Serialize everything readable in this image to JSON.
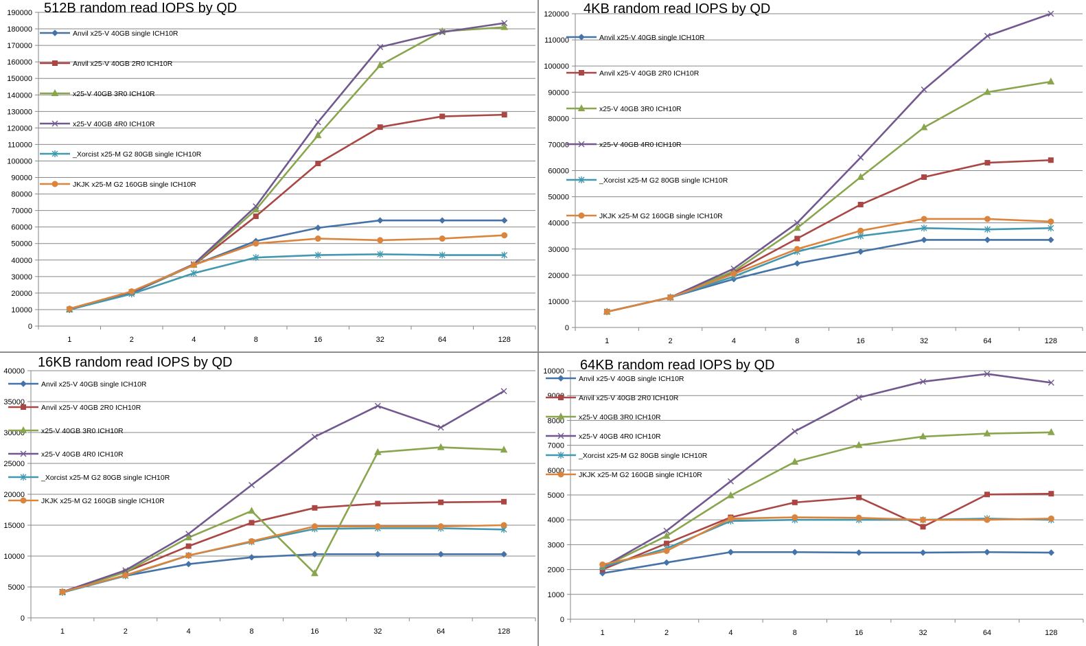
{
  "chart_data": [
    {
      "type": "line",
      "title": "512B random read IOPS by QD",
      "categories": [
        "1",
        "2",
        "4",
        "8",
        "16",
        "32",
        "64",
        "128"
      ],
      "ylim": [
        0,
        190000
      ],
      "ystep": 10000,
      "yticks": [
        "0",
        "10000",
        "20000",
        "30000",
        "40000",
        "50000",
        "60000",
        "70000",
        "80000",
        "90000",
        "100000",
        "110000",
        "120000",
        "130000",
        "140000",
        "150000",
        "160000",
        "170000",
        "180000",
        "190000"
      ],
      "grid": true,
      "legend_position": "top-left",
      "series": [
        {
          "name": "Anvil x25-V 40GB single ICH10R",
          "color": "#4572a7",
          "marker": "diamond",
          "values": [
            10000,
            20000,
            37000,
            51500,
            59500,
            64000,
            64000,
            64000
          ]
        },
        {
          "name": "Anvil x25-V 40GB 2R0 ICH10R",
          "color": "#aa4643",
          "marker": "square",
          "values": [
            10000,
            20500,
            37000,
            66500,
            98500,
            120500,
            127000,
            128000
          ]
        },
        {
          "name": "x25-V 40GB 3R0 ICH10R",
          "color": "#89a54e",
          "marker": "triangle",
          "values": [
            10000,
            20500,
            37000,
            70500,
            115500,
            158000,
            178500,
            181000
          ]
        },
        {
          "name": "x25-V 40GB 4R0 ICH10R",
          "color": "#71588f",
          "marker": "x",
          "values": [
            10000,
            20500,
            37500,
            72500,
            123500,
            169000,
            178000,
            183500
          ]
        },
        {
          "name": "_Xorcist x25-M G2 80GB single ICH10R",
          "color": "#4198af",
          "marker": "star",
          "values": [
            10000,
            19500,
            32000,
            41500,
            43000,
            43500,
            43000,
            43000
          ]
        },
        {
          "name": "JKJK x25-M G2 160GB single  ICH10R",
          "color": "#db843d",
          "marker": "circle",
          "values": [
            10500,
            21000,
            37000,
            50000,
            53000,
            52000,
            53000,
            55000
          ]
        }
      ]
    },
    {
      "type": "line",
      "title": "4KB random read IOPS by QD",
      "categories": [
        "1",
        "2",
        "4",
        "8",
        "16",
        "32",
        "64",
        "128"
      ],
      "ylim": [
        0,
        120000
      ],
      "ystep": 10000,
      "yticks": [
        "0",
        "10000",
        "20000",
        "30000",
        "40000",
        "50000",
        "60000",
        "70000",
        "80000",
        "90000",
        "100000",
        "110000",
        "120000"
      ],
      "grid": true,
      "legend_position": "top-left",
      "series": [
        {
          "name": "Anvil x25-V 40GB single ICH10R",
          "color": "#4572a7",
          "marker": "diamond",
          "values": [
            6000,
            11500,
            18500,
            24500,
            29000,
            33500,
            33500,
            33500
          ]
        },
        {
          "name": "Anvil x25-V 40GB 2R0 ICH10R",
          "color": "#aa4643",
          "marker": "square",
          "values": [
            6000,
            11500,
            21000,
            34000,
            47000,
            57500,
            63000,
            64000
          ]
        },
        {
          "name": "x25-V 40GB 3R0 ICH10R",
          "color": "#89a54e",
          "marker": "triangle",
          "values": [
            6000,
            11500,
            21500,
            38000,
            57500,
            76500,
            90000,
            94000
          ]
        },
        {
          "name": "x25-V 40GB 4R0 ICH10R",
          "color": "#71588f",
          "marker": "x",
          "values": [
            6000,
            11500,
            22500,
            40000,
            65000,
            91000,
            111500,
            120000
          ]
        },
        {
          "name": "_Xorcist x25-M G2 80GB single ICH10R",
          "color": "#4198af",
          "marker": "star",
          "values": [
            6000,
            11500,
            19500,
            29000,
            35000,
            38000,
            37500,
            38000
          ]
        },
        {
          "name": "JKJK x25-M G2 160GB single  ICH10R",
          "color": "#db843d",
          "marker": "circle",
          "values": [
            6000,
            11500,
            20500,
            30000,
            37000,
            41500,
            41500,
            40500
          ]
        }
      ]
    },
    {
      "type": "line",
      "title": "16KB random read IOPS by QD",
      "categories": [
        "1",
        "2",
        "4",
        "8",
        "16",
        "32",
        "64",
        "128"
      ],
      "ylim": [
        0,
        40000
      ],
      "ystep": 5000,
      "yticks": [
        "0",
        "5000",
        "10000",
        "15000",
        "20000",
        "25000",
        "30000",
        "35000",
        "40000"
      ],
      "grid": true,
      "legend_position": "top-left",
      "series": [
        {
          "name": "Anvil x25-V 40GB single ICH10R",
          "color": "#4572a7",
          "marker": "diamond",
          "values": [
            4200,
            6800,
            8700,
            9800,
            10300,
            10300,
            10300,
            10300
          ]
        },
        {
          "name": "Anvil x25-V 40GB 2R0 ICH10R",
          "color": "#aa4643",
          "marker": "square",
          "values": [
            4200,
            7400,
            11600,
            15400,
            17800,
            18500,
            18700,
            18800
          ]
        },
        {
          "name": "x25-V 40GB 3R0 ICH10R",
          "color": "#89a54e",
          "marker": "triangle",
          "values": [
            4200,
            7400,
            13000,
            17300,
            7200,
            26800,
            27600,
            27200
          ]
        },
        {
          "name": "x25-V 40GB 4R0 ICH10R",
          "color": "#71588f",
          "marker": "x",
          "values": [
            4200,
            7700,
            13600,
            21500,
            29300,
            34300,
            30800,
            36700
          ]
        },
        {
          "name": "_Xorcist x25-M G2 80GB single ICH10R",
          "color": "#4198af",
          "marker": "star",
          "values": [
            4100,
            6800,
            10100,
            12300,
            14400,
            14500,
            14500,
            14300
          ]
        },
        {
          "name": "JKJK x25-M G2 160GB single  ICH10R",
          "color": "#db843d",
          "marker": "circle",
          "values": [
            4200,
            6900,
            10100,
            12400,
            14800,
            14800,
            14800,
            15000
          ]
        }
      ]
    },
    {
      "type": "line",
      "title": "64KB random read IOPS by QD",
      "categories": [
        "1",
        "2",
        "4",
        "8",
        "16",
        "32",
        "64",
        "128"
      ],
      "ylim": [
        0,
        10000
      ],
      "ystep": 1000,
      "yticks": [
        "0",
        "1000",
        "2000",
        "3000",
        "4000",
        "5000",
        "6000",
        "7000",
        "8000",
        "9000",
        "10000"
      ],
      "grid": true,
      "legend_position": "top-left",
      "series": [
        {
          "name": "Anvil x25-V 40GB single ICH10R",
          "color": "#4572a7",
          "marker": "diamond",
          "values": [
            1850,
            2280,
            2700,
            2700,
            2680,
            2680,
            2700,
            2680
          ]
        },
        {
          "name": "Anvil x25-V 40GB 2R0 ICH10R",
          "color": "#aa4643",
          "marker": "square",
          "values": [
            2000,
            3050,
            4100,
            4700,
            4900,
            3720,
            5020,
            5050
          ]
        },
        {
          "name": "x25-V 40GB 3R0 ICH10R",
          "color": "#89a54e",
          "marker": "triangle",
          "values": [
            2100,
            3350,
            4980,
            6330,
            7000,
            7350,
            7470,
            7520
          ]
        },
        {
          "name": "x25-V 40GB 4R0 ICH10R",
          "color": "#71588f",
          "marker": "x",
          "values": [
            2100,
            3560,
            5550,
            7560,
            8920,
            9560,
            9870,
            9520
          ]
        },
        {
          "name": "_Xorcist x25-M G2 80GB single ICH10R",
          "color": "#4198af",
          "marker": "star",
          "values": [
            2100,
            2850,
            3950,
            4000,
            4000,
            4000,
            4050,
            4000
          ]
        },
        {
          "name": "JKJK x25-M G2 160GB single  ICH10R",
          "color": "#db843d",
          "marker": "circle",
          "values": [
            2200,
            2750,
            4050,
            4100,
            4080,
            4000,
            4000,
            4050
          ]
        }
      ]
    }
  ]
}
